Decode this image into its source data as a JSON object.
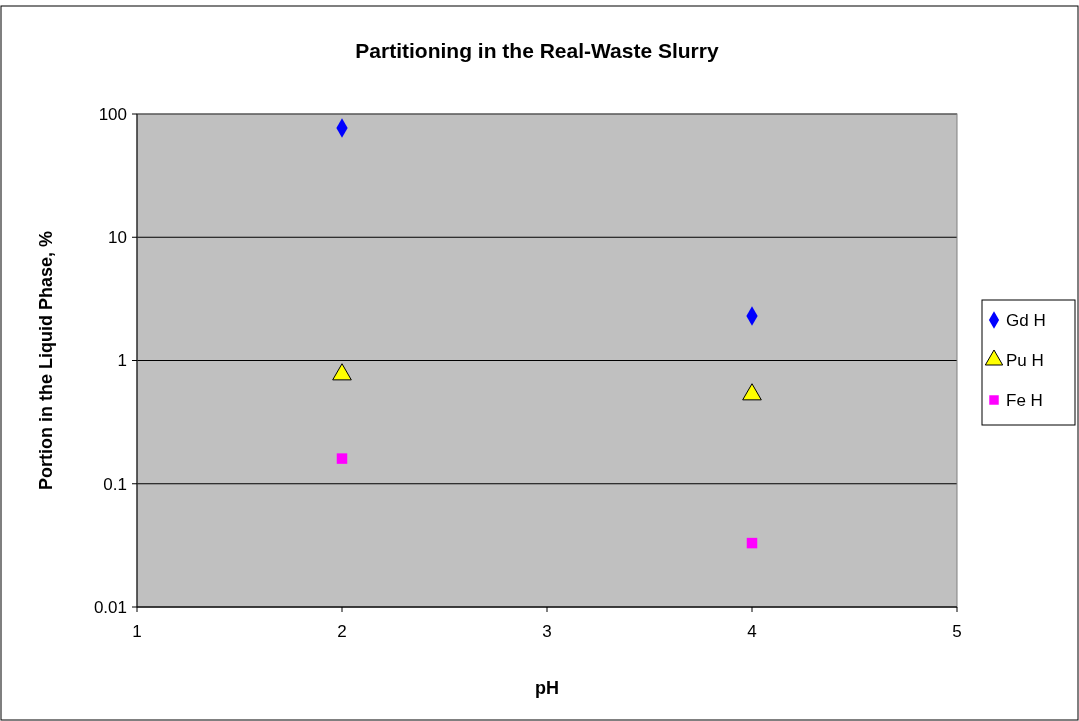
{
  "chart_data": {
    "type": "scatter",
    "title": "Partitioning in the Real-Waste Slurry",
    "xlabel": "pH",
    "ylabel": "Portion in the Liquid Phase, %",
    "x": [
      2,
      4
    ],
    "series": [
      {
        "name": "Gd H",
        "color": "#0000ff",
        "marker": "diamond",
        "values": [
          77,
          2.3
        ]
      },
      {
        "name": "Pu H",
        "color": "#ffff00",
        "marker": "triangle",
        "values": [
          0.77,
          0.53
        ]
      },
      {
        "name": "Fe H",
        "color": "#ff00ff",
        "marker": "square",
        "values": [
          0.16,
          0.033
        ]
      }
    ],
    "xlim": [
      1,
      5
    ],
    "xticks": [
      1,
      2,
      3,
      4,
      5
    ],
    "ylim": [
      0.01,
      100
    ],
    "yticks": [
      0.01,
      0.1,
      1,
      10,
      100
    ],
    "log": "y",
    "grid": "y",
    "legend": "right"
  }
}
